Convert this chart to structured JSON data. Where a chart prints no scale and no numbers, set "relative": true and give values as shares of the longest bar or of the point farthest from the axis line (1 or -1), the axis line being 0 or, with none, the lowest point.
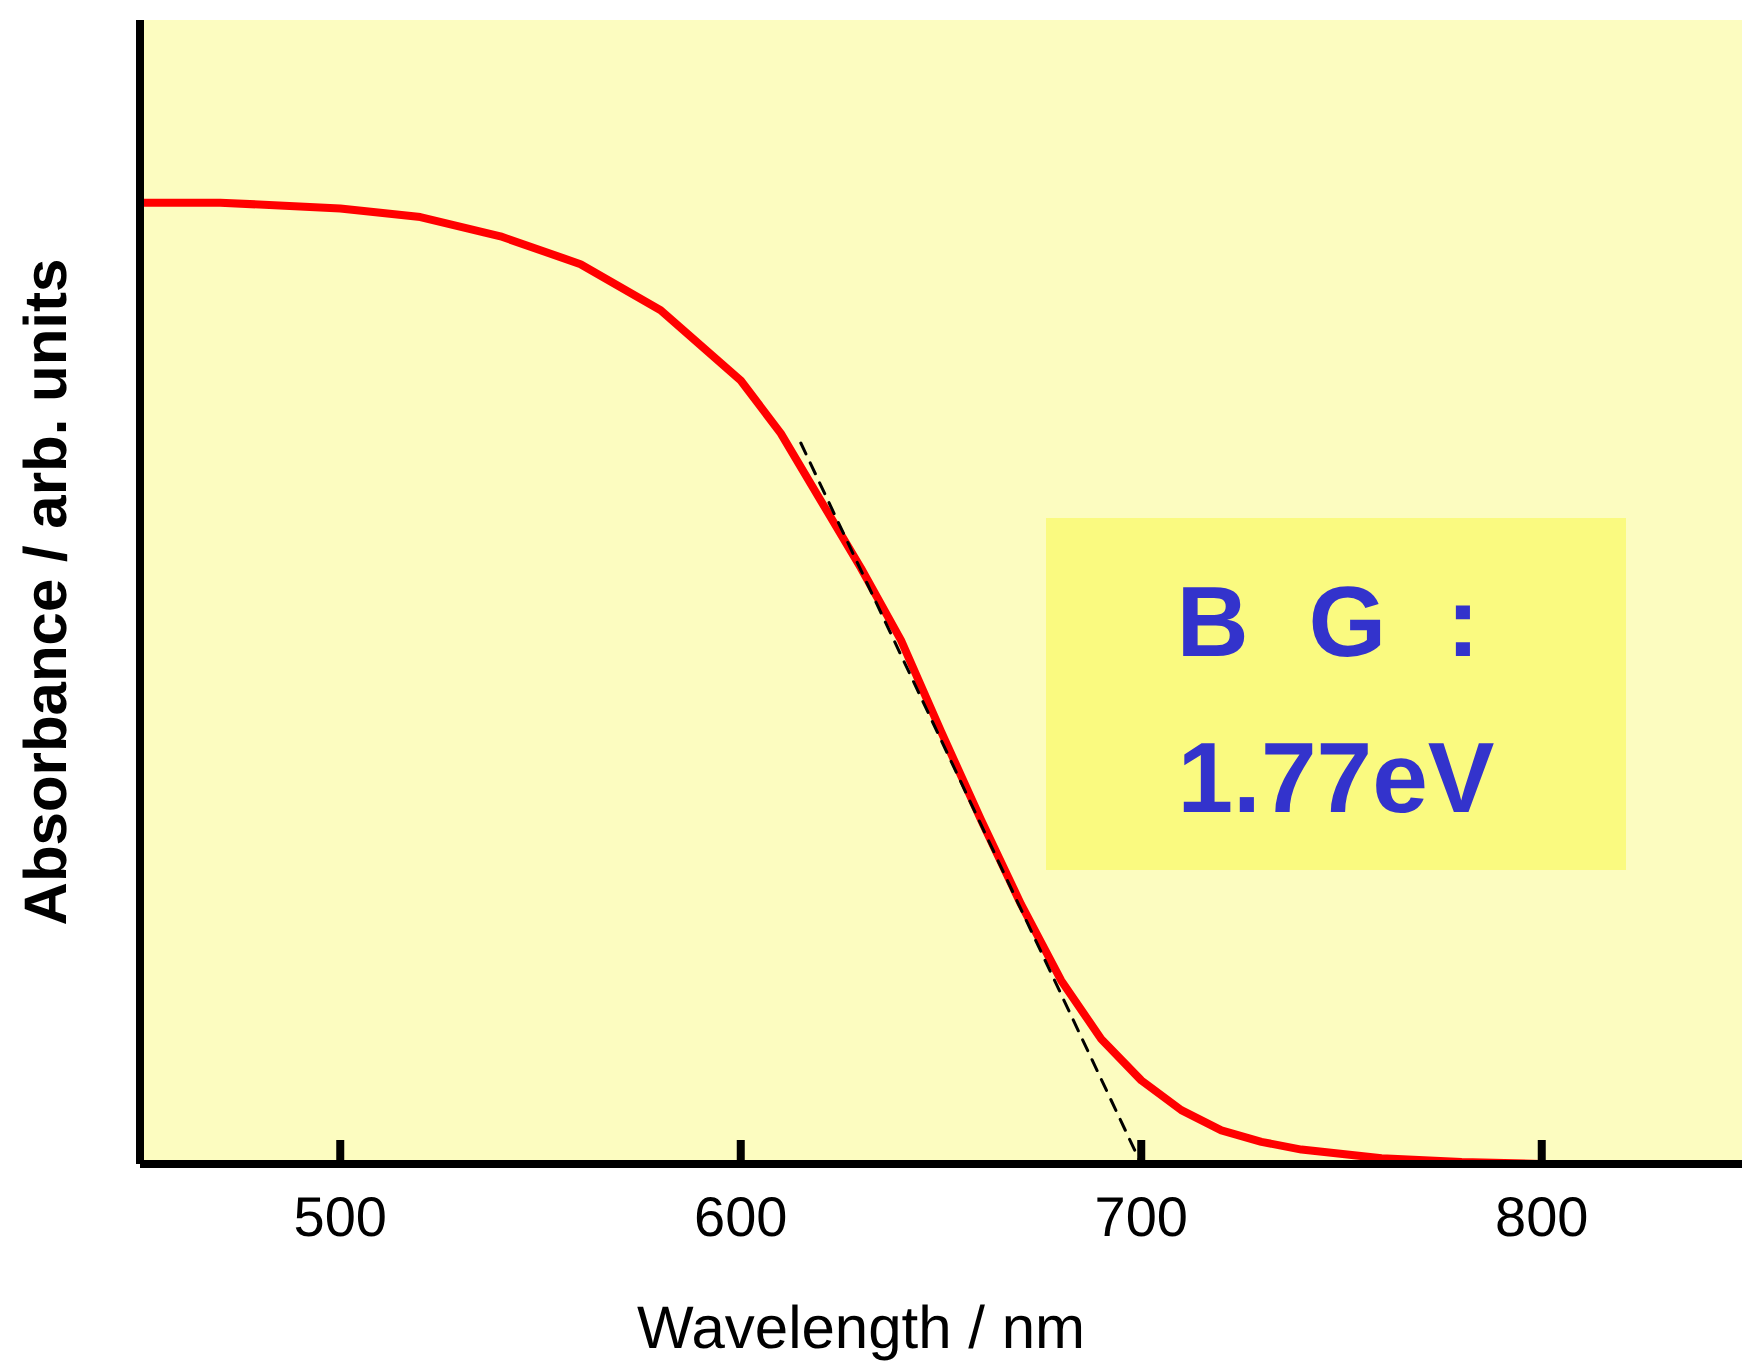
{
  "chart_data": {
    "type": "line",
    "xlabel": "Wavelength / nm",
    "ylabel": "Absorbance / arb. units",
    "relative": true,
    "xlim": [
      450,
      850
    ],
    "xticks": [
      500,
      600,
      700,
      800
    ],
    "grid": false,
    "marker": "none",
    "annotations": [
      "B G :",
      "1.77eV"
    ],
    "series": [
      {
        "color": "#ff0000",
        "line_style": "solid",
        "x": [
          450,
          470,
          500,
          520,
          540,
          560,
          580,
          600,
          610,
          620,
          630,
          640,
          650,
          660,
          670,
          680,
          690,
          700,
          710,
          720,
          730,
          740,
          760,
          780,
          800,
          850
        ],
        "values": [
          1.0,
          1.0,
          0.994,
          0.985,
          0.965,
          0.936,
          0.888,
          0.815,
          0.76,
          0.69,
          0.62,
          0.545,
          0.45,
          0.358,
          0.27,
          0.191,
          0.13,
          0.087,
          0.056,
          0.035,
          0.023,
          0.015,
          0.006,
          0.002,
          0,
          0
        ]
      },
      {
        "color": "#000000",
        "line_style": "dashed",
        "x": [
          615,
          700
        ],
        "values": [
          0.75,
          0
        ]
      }
    ]
  }
}
